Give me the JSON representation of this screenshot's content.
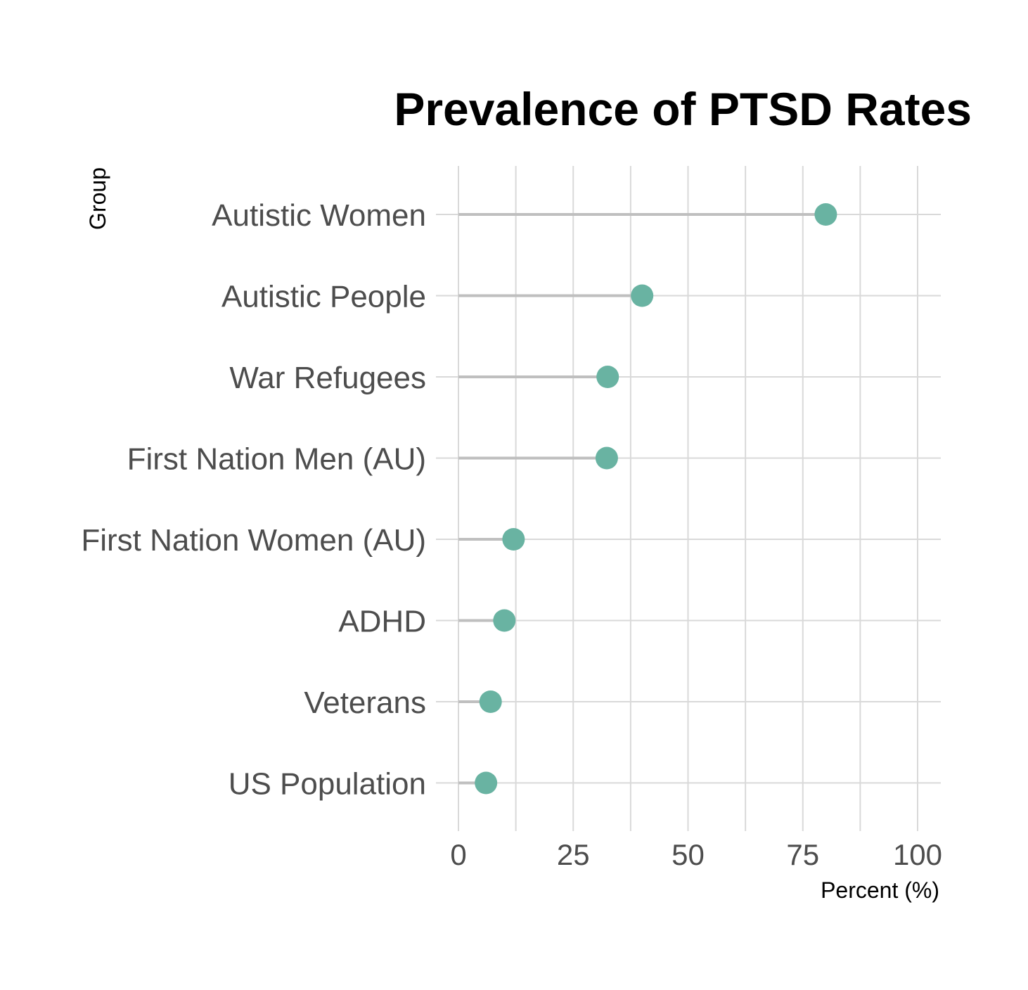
{
  "chart_data": {
    "type": "lollipop",
    "title": "Prevalence of PTSD Rates",
    "xlabel": "Percent (%)",
    "ylabel": "Group",
    "xlim": [
      0,
      105
    ],
    "x_ticks": [
      0,
      25,
      50,
      75,
      100
    ],
    "grid": true,
    "legend": "none",
    "categories": [
      "Autistic Women",
      "Autistic People",
      "War Refugees",
      "First Nation Men (AU)",
      "First Nation Women (AU)",
      "ADHD",
      "Veterans",
      "US Population"
    ],
    "values": [
      80,
      40,
      32.5,
      32.3,
      12,
      10,
      7,
      6
    ],
    "colors": {
      "point": "#69b3a2",
      "stem": "#bfbfbf",
      "grid": "#d9d9d9"
    }
  }
}
